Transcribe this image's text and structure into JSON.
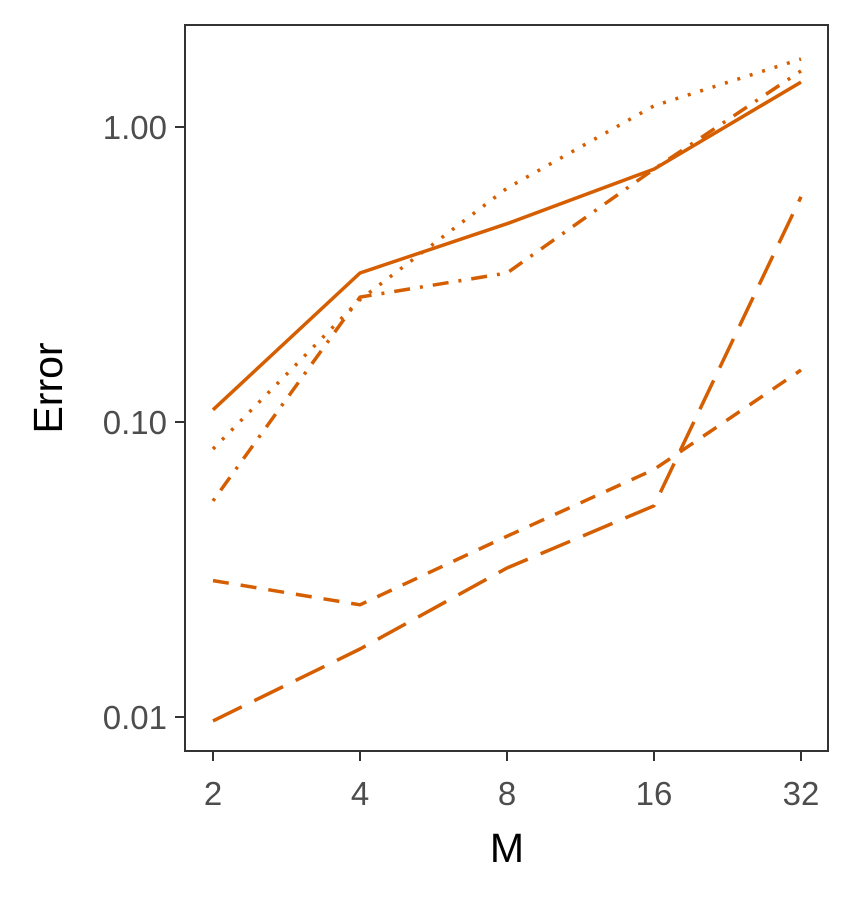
{
  "chart_data": {
    "type": "line",
    "title": "",
    "xlabel": "M",
    "ylabel": "Error",
    "x_scale": "log2",
    "y_scale": "log10",
    "x": [
      2,
      4,
      8,
      16,
      32
    ],
    "x_tick_labels": [
      "2",
      "4",
      "8",
      "16",
      "32"
    ],
    "y_ticks": [
      0.01,
      0.1,
      1.0
    ],
    "y_tick_labels": [
      "0.01",
      "0.10",
      "1.00"
    ],
    "ylim": [
      0.0075,
      2.2
    ],
    "grid": false,
    "legend": "none",
    "series": [
      {
        "style": "solid",
        "values": [
          0.11,
          0.32,
          0.47,
          0.72,
          1.42
        ]
      },
      {
        "style": "dotted",
        "values": [
          0.081,
          0.26,
          0.62,
          1.18,
          1.7
        ]
      },
      {
        "style": "dotdash",
        "values": [
          0.054,
          0.265,
          0.32,
          0.72,
          1.55
        ]
      },
      {
        "style": "dashed",
        "values": [
          0.029,
          0.024,
          0.041,
          0.069,
          0.15
        ]
      },
      {
        "style": "longdash",
        "values": [
          0.0097,
          0.017,
          0.032,
          0.052,
          0.58
        ]
      }
    ],
    "colors": {
      "line": "#d55e00",
      "panel_border": "#333333",
      "tick_text": "#4d4d4d"
    }
  }
}
